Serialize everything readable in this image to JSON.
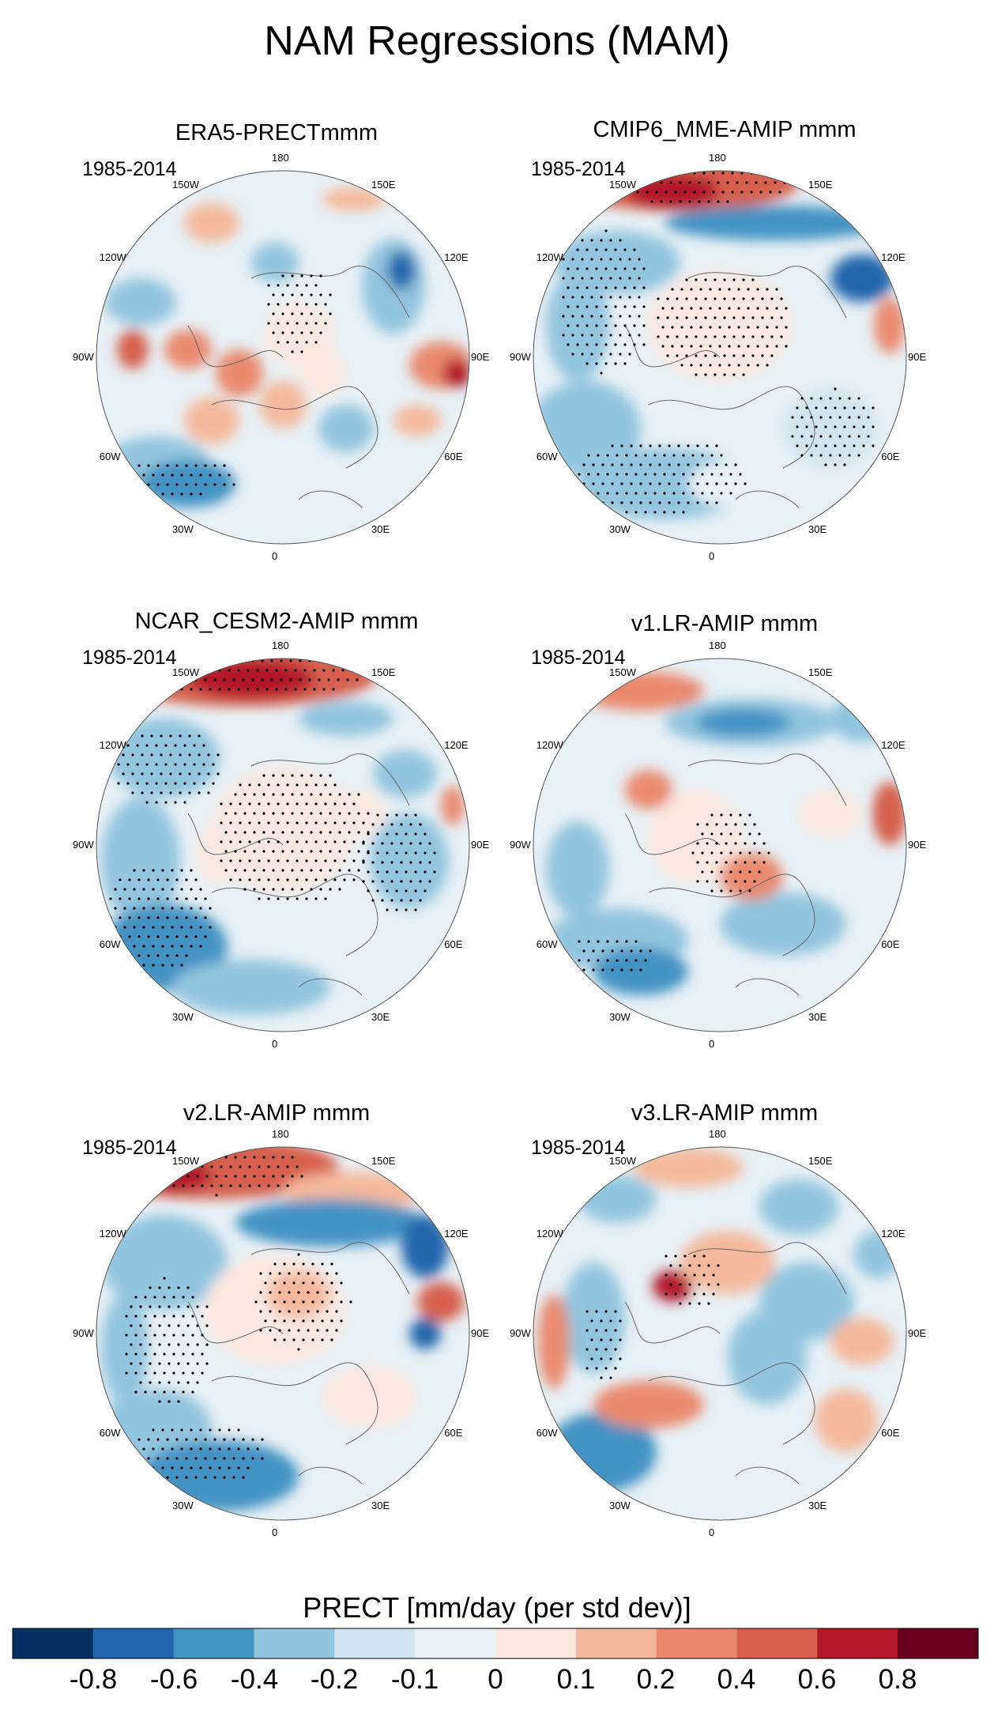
{
  "title": "NAM Regressions (MAM)",
  "period": "1985-2014",
  "panels": [
    {
      "title": "ERA5-PRECTmmm",
      "period": "1985-2014"
    },
    {
      "title": "CMIP6_MME-AMIP  mmm",
      "period": "1985-2014"
    },
    {
      "title": "NCAR_CESM2-AMIP  mmm",
      "period": "1985-2014"
    },
    {
      "title": "v1.LR-AMIP  mmm",
      "period": "1985-2014"
    },
    {
      "title": "v2.LR-AMIP  mmm",
      "period": "1985-2014"
    },
    {
      "title": "v3.LR-AMIP  mmm",
      "period": "1985-2014"
    }
  ],
  "longitude_labels": {
    "l180": "180",
    "l150e": "150E",
    "l120e": "120E",
    "l90e": "90E",
    "l60e": "60E",
    "l30e": "30E",
    "l0": "0",
    "l30w": "30W",
    "l60w": "60W",
    "l90w": "90W",
    "l120w": "120W",
    "l150w": "150W"
  },
  "colorbar": {
    "title": "PRECT [mm/day (per std dev)]",
    "colors": [
      "#053061",
      "#2166ac",
      "#4393c3",
      "#92c5de",
      "#d1e5f0",
      "#e8f1f6",
      "#fbe8e0",
      "#f4b99d",
      "#e98a6e",
      "#d6604d",
      "#b2182b",
      "#67001f"
    ],
    "ticks": [
      "-0.8",
      "-0.6",
      "-0.4",
      "-0.2",
      "-0.1",
      "0",
      "0.1",
      "0.2",
      "0.4",
      "0.6",
      "0.8"
    ]
  }
}
